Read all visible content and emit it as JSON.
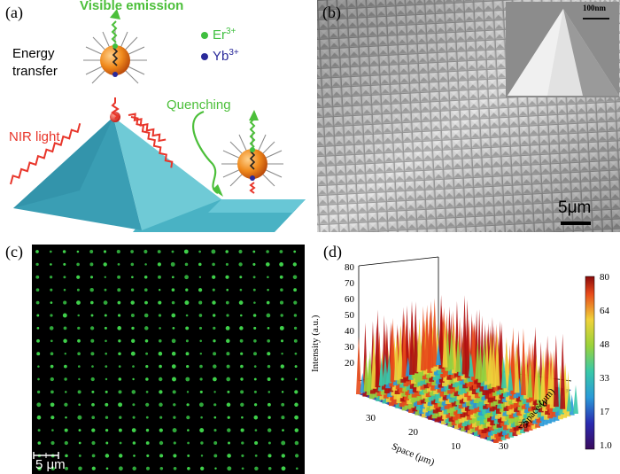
{
  "panel_a": {
    "label": "(a)",
    "visible_emission": "Visible  emission",
    "er_label": "Er",
    "er_sup": "3+",
    "yb_label": "Yb",
    "yb_sup": "3+",
    "energy": "Energy",
    "transfer": "transfer",
    "nir_light": "NIR light",
    "quenching": "Quenching",
    "colors": {
      "emission": "#4cbf3a",
      "nir": "#e8352a",
      "er": "#3fbf3f",
      "yb": "#2a2a9a",
      "pyramid": "#3fa3b8"
    }
  },
  "panel_b": {
    "label": "(b)",
    "inset_scale": "100nm",
    "scale_bar": "5μm"
  },
  "panel_c": {
    "label": "(c)",
    "scale_bar": "5 μm"
  },
  "panel_d": {
    "label": "(d)",
    "z_axis_label": "Intensity (a.u.)",
    "x_axis_label": "Space (μm)",
    "y_axis_label": "Space (μm)",
    "z_ticks": [
      "80",
      "70",
      "60",
      "50",
      "40",
      "30",
      "20"
    ],
    "x_ticks": [
      "30",
      "20",
      "10"
    ],
    "y_ticks": [
      "10",
      "20",
      "30"
    ],
    "colorbar_ticks": [
      "80",
      "64",
      "48",
      "33",
      "17",
      "1.0"
    ]
  }
}
